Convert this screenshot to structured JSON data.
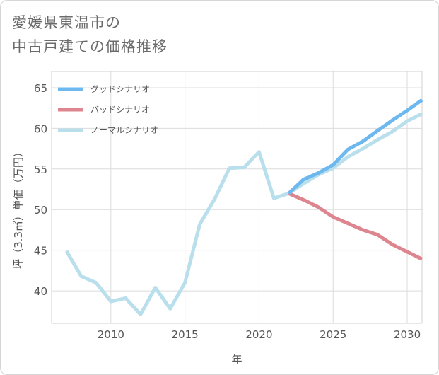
{
  "title": {
    "line1": "愛媛県東温市の",
    "line2": "中古戸建ての価格推移"
  },
  "chart_data": {
    "type": "line",
    "xlabel": "年",
    "ylabel": "坪（3.3㎡）単価（万円）",
    "xlim": [
      2006,
      2031
    ],
    "ylim": [
      36,
      67
    ],
    "xticks": [
      2010,
      2015,
      2020,
      2025,
      2030
    ],
    "yticks": [
      40,
      45,
      50,
      55,
      60,
      65
    ],
    "grid": true,
    "legend_position": "top-left",
    "series": [
      {
        "name": "グッドシナリオ",
        "color": "#6cb8ef",
        "x": [
          2022,
          2023,
          2024,
          2025,
          2026,
          2027,
          2028,
          2029,
          2030,
          2031
        ],
        "values": [
          52.0,
          53.7,
          54.5,
          55.5,
          57.4,
          58.4,
          59.7,
          61.0,
          62.2,
          63.5
        ]
      },
      {
        "name": "バッドシナリオ",
        "color": "#de868f",
        "x": [
          2022,
          2023,
          2024,
          2025,
          2026,
          2027,
          2028,
          2029,
          2030,
          2031
        ],
        "values": [
          52.0,
          51.2,
          50.3,
          49.1,
          48.3,
          47.5,
          46.9,
          45.7,
          44.8,
          43.9
        ]
      },
      {
        "name": "ノーマルシナリオ",
        "color": "#b9dfec",
        "x": [
          2007,
          2008,
          2009,
          2010,
          2011,
          2012,
          2013,
          2014,
          2015,
          2016,
          2017,
          2018,
          2019,
          2020,
          2021,
          2022,
          2023,
          2024,
          2025,
          2026,
          2027,
          2028,
          2029,
          2030,
          2031
        ],
        "values": [
          44.9,
          41.8,
          41.0,
          38.7,
          39.1,
          37.1,
          40.4,
          37.8,
          41.0,
          48.2,
          51.3,
          55.1,
          55.2,
          57.1,
          51.4,
          52.0,
          53.2,
          54.3,
          55.1,
          56.5,
          57.5,
          58.6,
          59.6,
          60.9,
          61.8
        ]
      }
    ]
  }
}
